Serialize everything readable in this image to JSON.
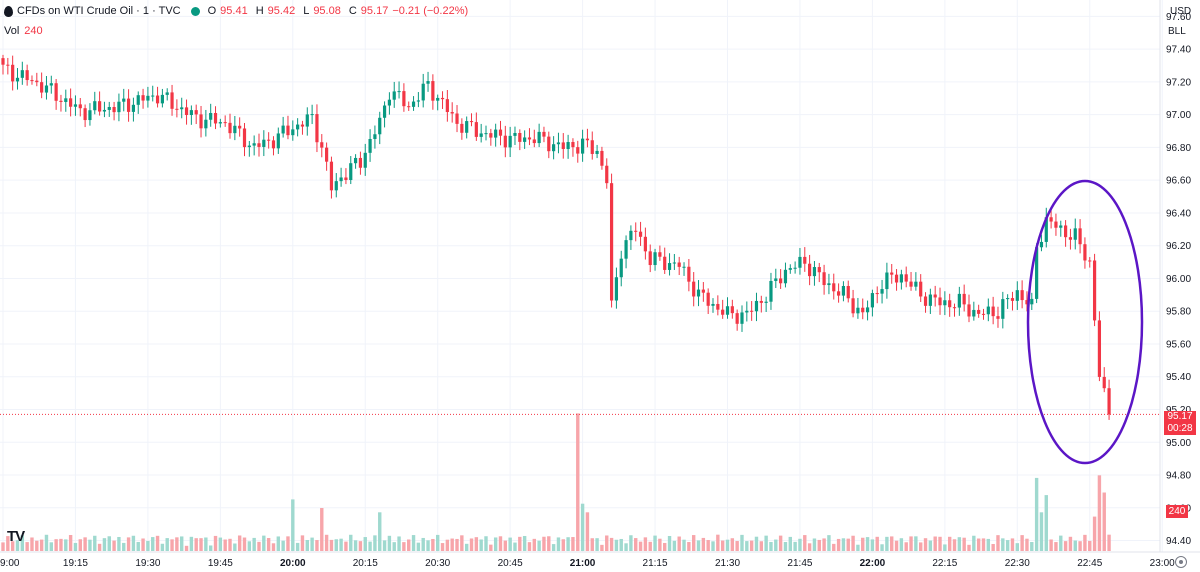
{
  "legend": {
    "symbol": "CFDs on WTI Crude Oil · 1 · TVC",
    "open_label": "O",
    "open": "95.41",
    "high_label": "H",
    "high": "95.42",
    "low_label": "L",
    "low": "95.08",
    "close_label": "C",
    "close": "95.17",
    "change": "−0.21 (−0.22%)"
  },
  "volume": {
    "label": "Vol",
    "value": "240"
  },
  "currency": "USD",
  "unit": "BLL",
  "price_tag": {
    "price": "95.17",
    "countdown": "00:28"
  },
  "volume_tag": "240",
  "logo_text": "TV",
  "colors": {
    "up": "#089981",
    "down": "#f23645",
    "up_volume": "#9fd9cf",
    "down_volume": "#f7a5aa",
    "annotation": "#5b16c6",
    "grid": "#f0f3fa"
  },
  "chart_data": {
    "type": "candlestick",
    "symbol": "CFDs on WTI Crude Oil",
    "interval": "1",
    "x_ticks": [
      "9:00",
      "19:15",
      "19:30",
      "19:45",
      "20:00",
      "20:15",
      "20:30",
      "20:45",
      "21:00",
      "21:15",
      "21:30",
      "21:45",
      "22:00",
      "22:15",
      "22:30",
      "22:45",
      "23:00"
    ],
    "x_ticks_bold": [
      "20:00",
      "21:00",
      "22:00"
    ],
    "y_ticks": [
      "97.60",
      "97.40",
      "97.20",
      "97.00",
      "96.80",
      "96.60",
      "96.40",
      "96.20",
      "96.00",
      "95.80",
      "95.60",
      "95.40",
      "95.20",
      "95.00",
      "94.80",
      "94.60",
      "94.40"
    ],
    "ylim": [
      94.33,
      97.7
    ],
    "last_price": 95.17,
    "anchors": [
      {
        "i": 0,
        "p": 97.28
      },
      {
        "i": 8,
        "p": 97.18
      },
      {
        "i": 16,
        "p": 97.02
      },
      {
        "i": 24,
        "p": 97.05
      },
      {
        "i": 32,
        "p": 97.12
      },
      {
        "i": 40,
        "p": 96.98
      },
      {
        "i": 46,
        "p": 96.95
      },
      {
        "i": 52,
        "p": 96.8
      },
      {
        "i": 56,
        "p": 96.85
      },
      {
        "i": 60,
        "p": 96.92
      },
      {
        "i": 64,
        "p": 96.98
      },
      {
        "i": 66,
        "p": 96.8
      },
      {
        "i": 68,
        "p": 96.55
      },
      {
        "i": 70,
        "p": 96.62
      },
      {
        "i": 74,
        "p": 96.72
      },
      {
        "i": 78,
        "p": 96.95
      },
      {
        "i": 80,
        "p": 97.15
      },
      {
        "i": 84,
        "p": 97.05
      },
      {
        "i": 88,
        "p": 97.18
      },
      {
        "i": 94,
        "p": 96.95
      },
      {
        "i": 100,
        "p": 96.88
      },
      {
        "i": 106,
        "p": 96.85
      },
      {
        "i": 110,
        "p": 96.86
      },
      {
        "i": 116,
        "p": 96.8
      },
      {
        "i": 120,
        "p": 96.82
      },
      {
        "i": 123,
        "p": 96.78
      },
      {
        "i": 125,
        "p": 96.6
      },
      {
        "i": 126,
        "p": 95.82
      },
      {
        "i": 128,
        "p": 96.18
      },
      {
        "i": 131,
        "p": 96.3
      },
      {
        "i": 134,
        "p": 96.12
      },
      {
        "i": 140,
        "p": 96.08
      },
      {
        "i": 144,
        "p": 95.9
      },
      {
        "i": 150,
        "p": 95.78
      },
      {
        "i": 154,
        "p": 95.78
      },
      {
        "i": 158,
        "p": 95.9
      },
      {
        "i": 162,
        "p": 96.05
      },
      {
        "i": 166,
        "p": 96.1
      },
      {
        "i": 170,
        "p": 95.98
      },
      {
        "i": 174,
        "p": 95.9
      },
      {
        "i": 178,
        "p": 95.78
      },
      {
        "i": 182,
        "p": 95.98
      },
      {
        "i": 186,
        "p": 96.02
      },
      {
        "i": 190,
        "p": 95.9
      },
      {
        "i": 194,
        "p": 95.85
      },
      {
        "i": 198,
        "p": 95.85
      },
      {
        "i": 202,
        "p": 95.78
      },
      {
        "i": 206,
        "p": 95.8
      },
      {
        "i": 210,
        "p": 95.92
      },
      {
        "i": 213,
        "p": 95.82
      },
      {
        "i": 214,
        "p": 96.2
      },
      {
        "i": 216,
        "p": 96.35
      },
      {
        "i": 222,
        "p": 96.25
      },
      {
        "i": 225,
        "p": 96.1
      },
      {
        "i": 227,
        "p": 95.4
      },
      {
        "i": 229,
        "p": 95.17
      }
    ],
    "volume_spikes": [
      {
        "i": 60,
        "v": 60
      },
      {
        "i": 66,
        "v": 50
      },
      {
        "i": 78,
        "v": 45
      },
      {
        "i": 119,
        "v": 160
      },
      {
        "i": 120,
        "v": 55
      },
      {
        "i": 121,
        "v": 45
      },
      {
        "i": 214,
        "v": 85
      },
      {
        "i": 215,
        "v": 45
      },
      {
        "i": 216,
        "v": 65
      },
      {
        "i": 226,
        "v": 40
      },
      {
        "i": 227,
        "v": 88
      },
      {
        "i": 228,
        "v": 68
      }
    ],
    "annotation": {
      "type": "ellipse",
      "around": "22:35–22:50 sell-off"
    }
  }
}
